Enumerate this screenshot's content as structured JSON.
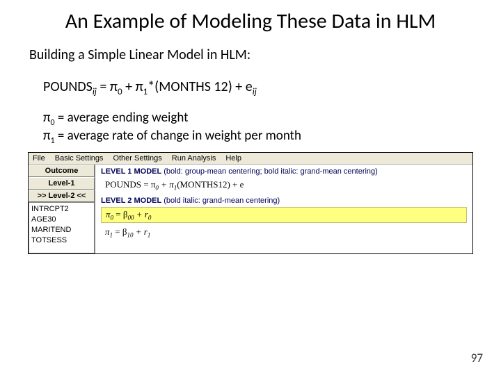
{
  "title": "An Example of Modeling These Data in HLM",
  "subtitle": "Building a Simple Linear Model in HLM:",
  "equation": {
    "lhs": "POUNDS",
    "lsub": "ij",
    "eq": " = π",
    "s0": "0",
    "mid1": " + π",
    "s1": "1",
    "mid2": "*(MONTHS 12) + e",
    "esub": "ij"
  },
  "defs": {
    "pi0_pre": "π",
    "pi0_sub": "0",
    "pi0_post": " = average ending weight",
    "pi1_pre": "π",
    "pi1_sub": "1",
    "pi1_post": " = average rate of change in weight per month"
  },
  "hlm": {
    "menu": {
      "file": "File",
      "basic": "Basic Settings",
      "other": "Other Settings",
      "run": "Run Analysis",
      "help": "Help"
    },
    "buttons": {
      "outcome": "Outcome",
      "level1": "Level-1",
      "level2": ">> Level-2 <<"
    },
    "vars": {
      "v1": "INTRCPT2",
      "v2": "AGE30",
      "v3": "MARITEND",
      "v4": "TOTSESS"
    },
    "l1_label": "LEVEL 1 MODEL",
    "l1_note": " (bold: group-mean centering; bold italic: grand-mean centering)",
    "l1_eq": {
      "a": "POUNDS  =  π",
      "b": "0",
      "c": " + π",
      "d": "1",
      "e": "(MONTHS12) + e"
    },
    "l2_label": "LEVEL 2 MODEL",
    "l2_note": " (bold italic: grand-mean centering)",
    "l2_eq1": {
      "a": "π",
      "b": "0",
      "c": "  =  β",
      "d": "00",
      "e": " + r",
      "f": "0"
    },
    "l2_eq2": {
      "a": "π",
      "b": "1",
      "c": "  =  β",
      "d": "10",
      "e": " + r",
      "f": "1"
    }
  },
  "page_number": "97",
  "colors": {
    "bg": "#ffffff",
    "panel": "#ece9d8",
    "highlight": "#ffff80"
  }
}
